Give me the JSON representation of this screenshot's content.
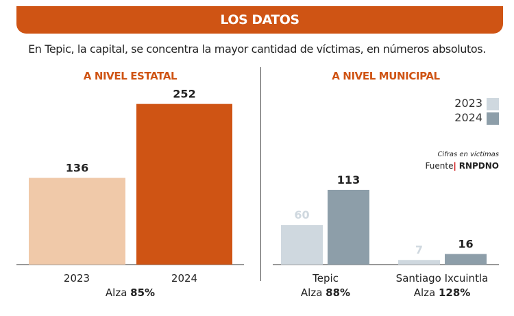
{
  "header": {
    "title": "LOS DATOS"
  },
  "subtitle": "En Tepic, la capital, se concentra la mayor cantidad de víctimas, en números absolutos.",
  "colors": {
    "accent": "#cf5414",
    "estatal_2023": "#f0c9a9",
    "estatal_2024": "#cf5414",
    "municipal_2023": "#cfd8df",
    "municipal_2024": "#8d9ea9"
  },
  "legend": {
    "items": [
      {
        "label": "2023",
        "color": "#cfd8df"
      },
      {
        "label": "2024",
        "color": "#8d9ea9"
      }
    ]
  },
  "note": {
    "units": "Cifras en víctimas",
    "source_label": "Fuente",
    "source": "RNPDNO"
  },
  "chart_data": [
    {
      "type": "bar",
      "title": "A NIVEL ESTATAL",
      "categories": [
        "2023",
        "2024"
      ],
      "values": [
        136,
        252
      ],
      "footer": {
        "prefix": "Alza",
        "value": "85%"
      }
    },
    {
      "type": "bar",
      "title": "A NIVEL MUNICIPAL",
      "categories": [
        "Tepic",
        "Santiago Ixcuintla"
      ],
      "series": [
        {
          "name": "2023",
          "values": [
            60,
            7
          ]
        },
        {
          "name": "2024",
          "values": [
            113,
            16
          ]
        }
      ],
      "footers": [
        {
          "prefix": "Alza",
          "value": "88%"
        },
        {
          "prefix": "Alza",
          "value": "128%"
        }
      ]
    }
  ]
}
